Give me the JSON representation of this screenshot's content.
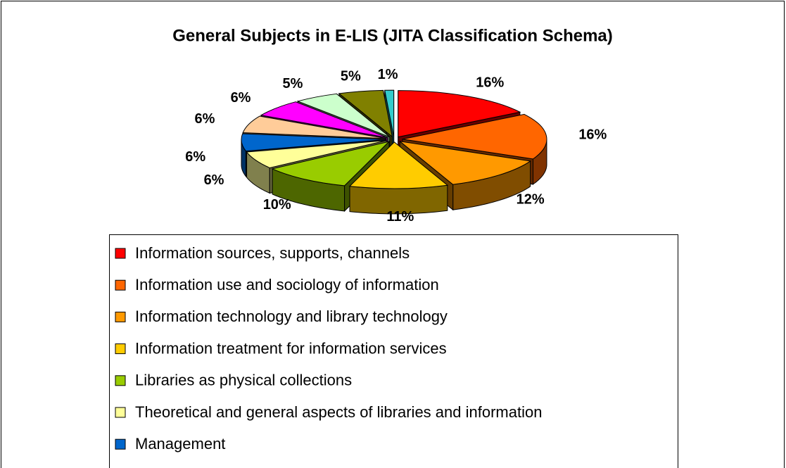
{
  "chart_data": {
    "type": "pie3d",
    "title": "General Subjects in E-LIS (JITA Classification Schema)",
    "categories": [
      "Information sources, supports, channels",
      "Information use and sociology of information",
      "Information technology and library technology",
      "Information treatment for information services",
      "Libraries as physical collections",
      "Theoretical and general aspects of libraries and information",
      "Management",
      null,
      null,
      null,
      null,
      null
    ],
    "values": [
      16,
      16,
      12,
      11,
      10,
      6,
      6,
      6,
      6,
      5,
      5,
      1
    ],
    "value_labels": [
      "16%",
      "16%",
      "12%",
      "11%",
      "10%",
      "6%",
      "6%",
      "6%",
      "6%",
      "5%",
      "5%",
      "1%"
    ],
    "colors": [
      "#ff0000",
      "#ff6600",
      "#ff9900",
      "#ffcc00",
      "#99cc00",
      "#ffff99",
      "#0066cc",
      "#ffcc99",
      "#ff00ff",
      "#ccffcc",
      "#808000",
      "#33cccc"
    ]
  }
}
